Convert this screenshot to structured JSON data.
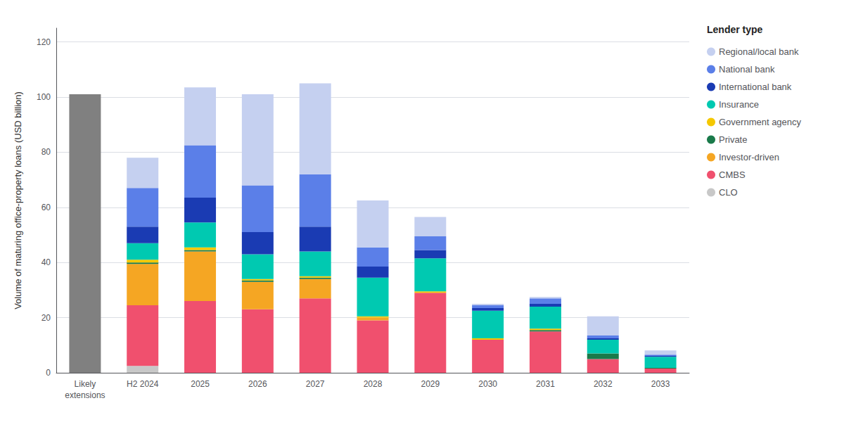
{
  "chart_data": {
    "type": "bar",
    "stacked": true,
    "ylabel": "Volume of maturing office-property loans (USD billion)",
    "legend_title": "Lender type",
    "legend": "right",
    "grid": true,
    "ylim": [
      0,
      125
    ],
    "yticks": [
      0,
      20,
      40,
      60,
      80,
      100,
      120
    ],
    "categories": [
      "Likely\nextensions",
      "H2 2024",
      "2025",
      "2026",
      "2027",
      "2028",
      "2029",
      "2030",
      "2031",
      "2032",
      "2033"
    ],
    "series": [
      {
        "name": "CLO",
        "color": "#c8c8c8",
        "colors": [
          "#808080",
          "#c8c8c8",
          "#c8c8c8",
          "#c8c8c8",
          "#c8c8c8",
          "#c8c8c8",
          "#c8c8c8",
          "#c8c8c8",
          "#c8c8c8",
          "#c8c8c8",
          "#c8c8c8"
        ],
        "values": [
          0,
          2.5,
          0,
          0,
          0,
          0,
          0,
          0,
          0,
          0,
          0
        ]
      },
      {
        "name": "CMBS",
        "color": "#f0506e",
        "colors": [
          "#808080",
          "#f0506e",
          "#f0506e",
          "#f0506e",
          "#f0506e",
          "#f0506e",
          "#f0506e",
          "#f0506e",
          "#f0506e",
          "#f0506e",
          "#f0506e"
        ],
        "values": [
          101,
          22,
          26,
          23,
          27,
          19,
          29,
          12,
          15,
          5,
          1.5
        ]
      },
      {
        "name": "Investor-driven",
        "color": "#f5a623",
        "colors": [
          "#808080",
          "#f5a623",
          "#f5a623",
          "#f5a623",
          "#f5a623",
          "#f5a623",
          "#f5a623",
          "#f5a623",
          "#f5a623",
          "#f5a623",
          "#f5a623"
        ],
        "values": [
          0,
          15,
          18,
          10,
          7,
          1,
          0,
          0,
          0,
          0,
          0
        ]
      },
      {
        "name": "Private",
        "color": "#1a7a4a",
        "colors": [
          "#808080",
          "#1a7a4a",
          "#1a7a4a",
          "#1a7a4a",
          "#1a7a4a",
          "#1a7a4a",
          "#1a7a4a",
          "#1a7a4a",
          "#1a7a4a",
          "#1a7a4a",
          "#1a7a4a"
        ],
        "values": [
          0,
          0.5,
          0.5,
          0.5,
          0.5,
          0,
          0,
          0,
          0.5,
          2,
          0.3
        ]
      },
      {
        "name": "Government agency",
        "color": "#f5c800",
        "colors": [
          "#808080",
          "#f5c800",
          "#f5c800",
          "#f5c800",
          "#f5c800",
          "#f5c800",
          "#f5c800",
          "#f5c800",
          "#f5c800",
          "#f5c800",
          "#f5c800"
        ],
        "values": [
          0,
          1,
          1,
          0.5,
          0.5,
          0.5,
          0.5,
          0.5,
          0.5,
          0,
          0
        ]
      },
      {
        "name": "Insurance",
        "color": "#00c9b1",
        "colors": [
          "#808080",
          "#00c9b1",
          "#00c9b1",
          "#00c9b1",
          "#00c9b1",
          "#00c9b1",
          "#00c9b1",
          "#00c9b1",
          "#00c9b1",
          "#00c9b1",
          "#00c9b1"
        ],
        "values": [
          0,
          6,
          9,
          9,
          9,
          14,
          12,
          10,
          8,
          5,
          4
        ]
      },
      {
        "name": "International bank",
        "color": "#1a3bb3",
        "colors": [
          "#808080",
          "#1a3bb3",
          "#1a3bb3",
          "#1a3bb3",
          "#1a3bb3",
          "#1a3bb3",
          "#1a3bb3",
          "#1a3bb3",
          "#1a3bb3",
          "#1a3bb3",
          "#1a3bb3"
        ],
        "values": [
          0,
          6,
          9,
          8,
          9,
          4,
          3,
          1,
          1,
          0.5,
          0.3
        ]
      },
      {
        "name": "National bank",
        "color": "#5b7fe8",
        "colors": [
          "#808080",
          "#5b7fe8",
          "#5b7fe8",
          "#5b7fe8",
          "#5b7fe8",
          "#5b7fe8",
          "#5b7fe8",
          "#5b7fe8",
          "#5b7fe8",
          "#5b7fe8",
          "#5b7fe8"
        ],
        "values": [
          0,
          14,
          19,
          17,
          19,
          7,
          5,
          1,
          2,
          1,
          0.5
        ]
      },
      {
        "name": "Regional/local bank",
        "color": "#c5d0f0",
        "colors": [
          "#808080",
          "#c5d0f0",
          "#c5d0f0",
          "#c5d0f0",
          "#c5d0f0",
          "#c5d0f0",
          "#c5d0f0",
          "#c5d0f0",
          "#c5d0f0",
          "#c5d0f0",
          "#c5d0f0"
        ],
        "values": [
          0,
          11,
          21,
          33,
          33,
          17,
          7,
          0.5,
          0.5,
          7,
          1.5
        ]
      }
    ]
  }
}
